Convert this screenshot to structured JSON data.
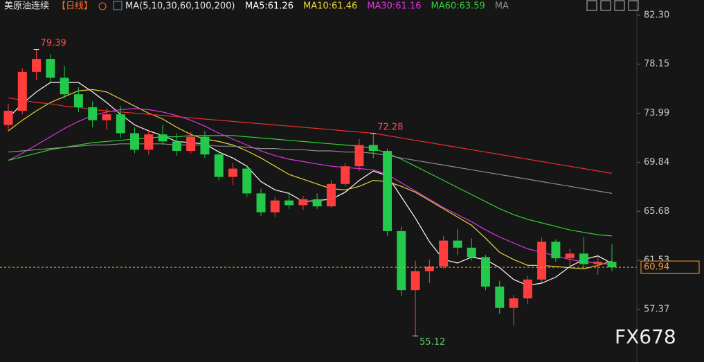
{
  "header": {
    "symbol": "美原油连续",
    "period": "【日线】",
    "indicator": "MA(5,10,30,60,100,200)"
  },
  "watermark": "FX678",
  "chart_data": {
    "type": "candlestick",
    "up_color": "#ff3d3d",
    "down_color": "#22c94a",
    "ylim": [
      52.91,
      83.59
    ],
    "yticks": [
      {
        "value": 82.3,
        "label": "82.30"
      },
      78.15,
      73.99,
      69.84,
      65.68,
      61.53,
      57.37
    ],
    "last_price": 60.94,
    "last_price_color": "#ff9a2e",
    "open": [
      73.0,
      74.2,
      77.5,
      78.6,
      77.0,
      75.6,
      74.5,
      73.4,
      73.9,
      72.3,
      70.9,
      72.2,
      71.6,
      70.8,
      72.0,
      70.5,
      68.6,
      69.3,
      67.2,
      65.6,
      66.6,
      66.2,
      66.7,
      66.1,
      68.0,
      69.5,
      71.3,
      70.8,
      64.0,
      59.0,
      60.6,
      61.0,
      63.2,
      62.6,
      61.8,
      59.3,
      57.5,
      58.3,
      59.9,
      63.1,
      61.7,
      62.1,
      61.2,
      61.4
    ],
    "high": [
      74.8,
      77.8,
      79.39,
      79.0,
      78.0,
      76.2,
      75.0,
      74.4,
      74.6,
      72.8,
      72.6,
      73.0,
      72.3,
      72.4,
      72.5,
      70.9,
      69.8,
      69.6,
      67.6,
      66.9,
      67.3,
      67.0,
      67.2,
      68.3,
      69.8,
      71.8,
      72.28,
      71.0,
      64.4,
      61.5,
      61.6,
      63.6,
      64.2,
      63.4,
      62.0,
      59.8,
      58.6,
      60.2,
      63.5,
      63.3,
      62.5,
      63.5,
      61.9,
      62.9
    ],
    "low": [
      72.6,
      73.9,
      76.8,
      76.6,
      75.3,
      74.1,
      72.8,
      72.6,
      71.9,
      70.6,
      70.5,
      71.3,
      70.4,
      70.6,
      70.2,
      68.3,
      67.9,
      66.9,
      65.3,
      65.2,
      65.9,
      65.8,
      65.9,
      66.0,
      67.8,
      69.1,
      70.2,
      63.6,
      58.5,
      55.12,
      59.6,
      60.8,
      62.0,
      61.5,
      59.0,
      57.0,
      56.0,
      57.8,
      59.6,
      61.4,
      60.9,
      60.8,
      60.3,
      60.6
    ],
    "close": [
      74.2,
      77.5,
      78.6,
      77.0,
      75.6,
      74.5,
      73.4,
      73.9,
      72.3,
      70.9,
      72.2,
      71.6,
      70.8,
      72.0,
      70.5,
      68.6,
      69.3,
      67.2,
      65.6,
      66.6,
      66.2,
      66.7,
      66.1,
      68.0,
      69.5,
      71.3,
      70.8,
      64.0,
      59.0,
      60.6,
      61.0,
      63.2,
      62.6,
      61.8,
      59.3,
      57.5,
      58.3,
      59.9,
      63.1,
      61.7,
      62.1,
      61.2,
      61.4,
      60.94
    ],
    "annotations": [
      {
        "label": "79.39",
        "color": "#ff4d4d"
      },
      {
        "label": "72.28",
        "color": "#ff4d4d"
      },
      {
        "label": "55.12",
        "color": "#5fd37a"
      }
    ],
    "series": [
      {
        "name": "MA5:61.26",
        "color": "#ffffff",
        "values": [
          73.6,
          74.8,
          75.8,
          76.6,
          76.6,
          76.6,
          75.8,
          74.9,
          73.9,
          73.0,
          72.5,
          72.1,
          71.6,
          71.5,
          71.4,
          70.7,
          70.2,
          69.5,
          68.2,
          67.5,
          67.2,
          66.5,
          66.6,
          66.7,
          67.3,
          68.3,
          69.1,
          68.7,
          66.9,
          65.1,
          63.1,
          61.6,
          61.3,
          61.8,
          61.6,
          60.9,
          59.9,
          59.4,
          59.6,
          60.1,
          61.0,
          61.6,
          61.9,
          61.26
        ]
      },
      {
        "name": "MA10:61.46",
        "color": "#e8d53a",
        "values": [
          72.5,
          73.4,
          74.2,
          74.9,
          75.4,
          75.9,
          76.0,
          75.8,
          75.2,
          74.6,
          74.0,
          73.5,
          72.8,
          72.2,
          71.8,
          71.6,
          71.3,
          70.8,
          70.2,
          69.5,
          68.8,
          68.4,
          68.0,
          67.6,
          67.5,
          67.8,
          68.3,
          68.2,
          67.8,
          67.3,
          66.6,
          65.9,
          65.2,
          64.5,
          63.4,
          62.2,
          61.6,
          61.1,
          61.1,
          61.0,
          60.9,
          60.8,
          61.1,
          61.46
        ]
      },
      {
        "name": "MA30:61.16",
        "color": "#e035e0",
        "values": [
          70.0,
          70.6,
          71.3,
          72.0,
          72.7,
          73.3,
          73.8,
          74.1,
          74.3,
          74.4,
          74.3,
          74.1,
          73.8,
          73.4,
          72.9,
          72.3,
          71.8,
          71.3,
          70.8,
          70.4,
          70.1,
          69.9,
          69.7,
          69.5,
          69.4,
          69.3,
          69.2,
          68.8,
          68.1,
          67.4,
          66.7,
          66.0,
          65.4,
          64.8,
          64.1,
          63.5,
          63.0,
          62.5,
          62.2,
          61.9,
          61.6,
          61.4,
          61.3,
          61.16
        ]
      },
      {
        "name": "MA60:63.59",
        "color": "#2fd32f",
        "values": [
          70.0,
          70.3,
          70.6,
          70.9,
          71.1,
          71.3,
          71.5,
          71.6,
          71.7,
          71.8,
          71.9,
          72.0,
          72.0,
          72.1,
          72.1,
          72.1,
          72.1,
          72.0,
          71.9,
          71.8,
          71.7,
          71.6,
          71.5,
          71.4,
          71.3,
          71.2,
          71.0,
          70.6,
          70.1,
          69.5,
          68.9,
          68.3,
          67.7,
          67.1,
          66.5,
          65.9,
          65.4,
          65.0,
          64.7,
          64.4,
          64.1,
          63.9,
          63.7,
          63.59
        ]
      },
      {
        "name": "MA",
        "color": "#8c8c8c",
        "values": [
          70.7,
          70.8,
          70.9,
          71.0,
          71.1,
          71.2,
          71.3,
          71.3,
          71.4,
          71.4,
          71.4,
          71.4,
          71.3,
          71.3,
          71.3,
          71.2,
          71.2,
          71.1,
          71.0,
          71.0,
          70.9,
          70.9,
          70.8,
          70.8,
          70.7,
          70.7,
          70.6,
          70.4,
          70.2,
          70.0,
          69.8,
          69.6,
          69.4,
          69.2,
          69.0,
          68.8,
          68.6,
          68.4,
          68.2,
          68.0,
          67.8,
          67.6,
          67.4,
          67.2
        ]
      },
      {
        "color": "#e8302a",
        "values": [
          75.3,
          75.1,
          74.9,
          74.8,
          74.6,
          74.5,
          74.3,
          74.2,
          74.1,
          74.0,
          73.9,
          73.8,
          73.7,
          73.6,
          73.5,
          73.4,
          73.3,
          73.2,
          73.1,
          73.0,
          72.9,
          72.8,
          72.7,
          72.6,
          72.5,
          72.4,
          72.3,
          72.1,
          71.9,
          71.7,
          71.5,
          71.3,
          71.1,
          70.9,
          70.7,
          70.5,
          70.3,
          70.1,
          69.9,
          69.7,
          69.5,
          69.3,
          69.1,
          68.9
        ]
      }
    ]
  }
}
